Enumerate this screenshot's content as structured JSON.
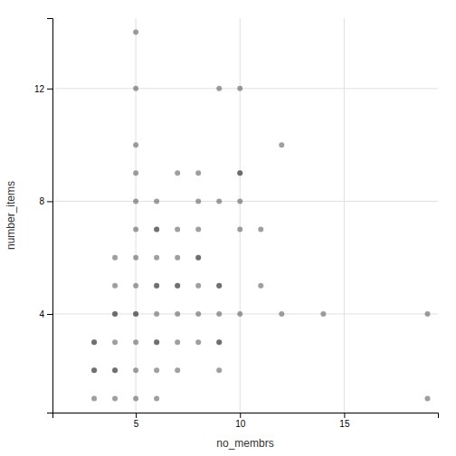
{
  "chart_data": {
    "type": "scatter",
    "x": [
      3,
      3,
      3,
      3,
      3,
      4,
      4,
      4,
      4,
      4,
      4,
      4,
      4,
      5,
      5,
      5,
      5,
      5,
      5,
      5,
      5,
      5,
      5,
      5,
      5,
      5,
      6,
      6,
      6,
      6,
      6,
      6,
      6,
      6,
      6,
      6,
      6,
      7,
      7,
      7,
      7,
      7,
      7,
      7,
      7,
      8,
      8,
      8,
      8,
      8,
      8,
      8,
      8,
      9,
      9,
      9,
      9,
      9,
      9,
      9,
      9,
      10,
      10,
      10,
      10,
      10,
      10,
      11,
      11,
      12,
      12,
      14,
      19,
      19
    ],
    "y": [
      1,
      2,
      2,
      3,
      3,
      1,
      2,
      2,
      3,
      4,
      4,
      5,
      6,
      1,
      2,
      3,
      4,
      4,
      5,
      6,
      7,
      8,
      9,
      10,
      12,
      14,
      1,
      2,
      3,
      3,
      4,
      5,
      5,
      6,
      7,
      7,
      8,
      2,
      3,
      4,
      5,
      5,
      6,
      7,
      9,
      3,
      4,
      5,
      6,
      6,
      7,
      8,
      9,
      2,
      3,
      3,
      4,
      5,
      5,
      8,
      12,
      4,
      7,
      8,
      9,
      9,
      12,
      5,
      7,
      4,
      10,
      4,
      1,
      4
    ],
    "xlabel": "no_membrs",
    "ylabel": "number_items",
    "xlim": [
      1.0,
      19.5
    ],
    "ylim": [
      0.5,
      14.5
    ],
    "xticks": [
      5,
      10,
      15
    ],
    "yticks": [
      4,
      8,
      12
    ],
    "color": "#404040",
    "grid": true
  }
}
